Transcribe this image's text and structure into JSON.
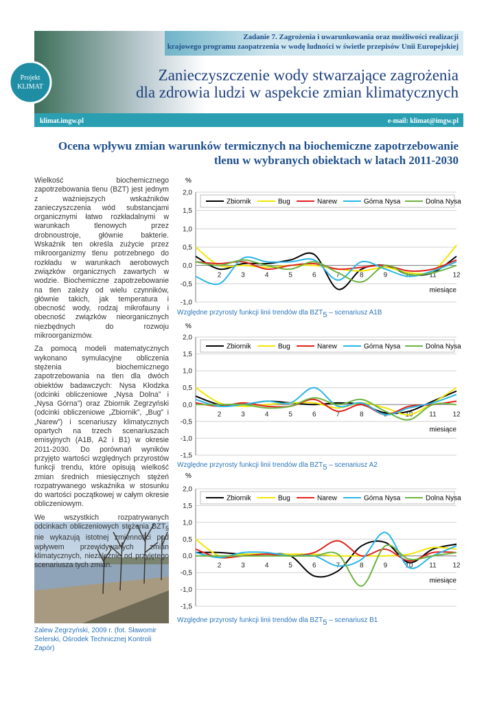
{
  "header": {
    "task": [
      "Zadanie 7. Zagrożenia i uwarunkowania oraz możliwości realizacji",
      "krajowego programu zaopatrzenia w wodę ludności w świetle przepisów Unii Europejskiej"
    ],
    "logo": [
      "Projekt",
      "KLIMAT"
    ],
    "title": [
      "Zanieczyszczenie wody stwarzające zagrożenia",
      "dla zdrowia ludzi w aspekcie zmian klimatycznych"
    ],
    "website": "klimat.imgw.pl",
    "email": "e-mail: klimat@imgw.pl"
  },
  "article": {
    "heading": [
      "Ocena wpływu zmian warunków termicznych na biochemiczne zapotrzebowanie",
      "tlenu w wybranych obiektach w latach 2011-2030"
    ],
    "paragraphs": [
      "Wielkość biochemicznego zapotrzebowania tlenu (BZT) jest jednym z ważniejszych wskaźników zanieczyszczenia wód substancjami organicznymi łatwo rozkładalnymi w warunkach tlenowych przez drobnoustroje, głównie bakterie. Wskaźnik ten określa zużycie przez mikroorganizmy tlenu potrzebnego do rozkładu w warunkach aerobowych związków organicznych zawartych w wodzie. Biochemiczne zapotrzebowanie na tlen zależy od wielu czynników, głównie takich, jak temperatura i obecność wody, rodzaj mikrofauny i obecność związków nieorganicznych niezbędnych do rozwoju mikroorganizmów.",
      "Za pomocą modeli matematycznych wykonano symulacyjne obliczenia stężenia biochemicznego zapotrzebowania na tlen dla dwóch obiektów badawczych: Nysa Kłodzka (odcinki obliczeniowe „Nysa Dolna” i „Nysa Górna”) oraz Zbiornik Zegrzyński (odcinki obliczeniowe „Zbiornik”, „Bug” i „Narew”) i scenariuszy klimatycznych opartych na trzech scenariuszach emisyjnych (A1B, A2 i B1) w okresie 2011-2030. Do porównań wyników przyjęto wartości względnych przyrostów funkcji trendu, które opisują wielkość zmian średnich miesięcznych stężeń rozpatrywanego wskaźnika w stosunku do wartości początkowej w całym okresie obliczeniowym.",
      [
        "We wszystkich rozpatrywanych odcinkach obliczeniowych stężenia BZT",
        "5",
        " nie wykazują istotnej zmienności pod wpływem przewidywanych zmian klimatycznych, niezależnie od przyjętego scenariusza tych zmian."
      ]
    ],
    "photo_caption": "Zalew Zegrzyński, 2009 r. (fot. Sławomir Selerski, Ośrodek Technicznej Kontroli Zapór)"
  },
  "chart_data": [
    {
      "type": "line",
      "caption": [
        "Względne przyrosty funkcji linii trendów dla BZT",
        "5",
        " – scenariusz A1B"
      ],
      "y_label": "%",
      "x_label": "miesiące",
      "grid": true,
      "legend": "top",
      "categories": [
        null,
        "2",
        "3",
        "4",
        "5",
        "6",
        "7",
        "8",
        "9",
        "10",
        "11",
        "12"
      ],
      "ylim": [
        -1,
        2
      ],
      "yticks": [
        {
          "value": -1,
          "label": "-1,0"
        },
        {
          "value": -0.5,
          "label": "-0,5"
        },
        {
          "value": 0,
          "label": "0,0"
        },
        {
          "value": 0.5,
          "label": "0,5"
        },
        {
          "value": 1,
          "label": "1,0"
        },
        {
          "value": 1.5,
          "label": "1,5"
        },
        {
          "value": 2,
          "label": "2,0"
        }
      ],
      "series": [
        {
          "name": "Zbiornik",
          "color": "#000000",
          "values": [
            0.25,
            -0.1,
            0.05,
            0.05,
            0.15,
            0.3,
            -0.65,
            -0.1,
            0,
            -0.25,
            -0.2,
            0.25
          ]
        },
        {
          "name": "Bug",
          "color": "#f2e600",
          "values": [
            0.5,
            0,
            0,
            -0.05,
            0,
            0,
            -0.1,
            -0.15,
            -0.05,
            -0.2,
            -0.15,
            0.55
          ]
        },
        {
          "name": "Narew",
          "color": "#e0201c",
          "values": [
            0.1,
            0.05,
            0.1,
            -0.1,
            0,
            0.05,
            -0.1,
            -0.05,
            0,
            -0.15,
            -0.1,
            0.15
          ]
        },
        {
          "name": "Górna Nysa",
          "color": "#29b6e6",
          "values": [
            -0.3,
            -0.5,
            0.2,
            0.1,
            0.1,
            0.15,
            -0.4,
            0.1,
            -0.1,
            -0.3,
            -0.15,
            0.1
          ]
        },
        {
          "name": "Dolna Nysa",
          "color": "#6cb33f",
          "values": [
            0.1,
            0,
            0.15,
            0,
            -0.1,
            0.1,
            -0.2,
            -0.45,
            0,
            -0.25,
            -0.2,
            0
          ]
        }
      ]
    },
    {
      "type": "line",
      "caption": [
        "Względne przyrosty funkcji linii trendów dla BZT",
        "5",
        " – scenariusz A2"
      ],
      "y_label": "%",
      "x_label": "miesiące",
      "grid": true,
      "legend": "top",
      "categories": [
        null,
        "2",
        "3",
        "4",
        "5",
        "6",
        "7",
        "8",
        "9",
        "10",
        "11",
        "12"
      ],
      "ylim": [
        -1.5,
        2
      ],
      "yticks": [
        {
          "value": -1.5,
          "label": "-1,5"
        },
        {
          "value": -1,
          "label": "-1,0"
        },
        {
          "value": -0.5,
          "label": "-0,5"
        },
        {
          "value": 0,
          "label": "0,0"
        },
        {
          "value": 0.5,
          "label": "0,5"
        },
        {
          "value": 1,
          "label": "1,0"
        },
        {
          "value": 1.5,
          "label": "1,5"
        },
        {
          "value": 2,
          "label": "2,0"
        }
      ],
      "series": [
        {
          "name": "Zbiornik",
          "color": "#000000",
          "values": [
            0.25,
            0,
            0,
            0.1,
            0.05,
            0,
            0.05,
            0,
            -0.25,
            -0.2,
            0.1,
            0.4
          ]
        },
        {
          "name": "Bug",
          "color": "#f2e600",
          "values": [
            0.5,
            0.05,
            -0.05,
            0,
            0.05,
            0.05,
            -0.1,
            0.05,
            -0.1,
            -0.3,
            0.05,
            0.5
          ]
        },
        {
          "name": "Narew",
          "color": "#e0201c",
          "values": [
            0.05,
            -0.05,
            0.05,
            -0.05,
            -0.05,
            0.15,
            -0.2,
            0,
            -0.3,
            -0.05,
            0,
            0.1
          ]
        },
        {
          "name": "Górna Nysa",
          "color": "#29b6e6",
          "values": [
            0.15,
            -0.05,
            0,
            0.1,
            0.05,
            0.5,
            -0.05,
            0.05,
            -0.3,
            -0.1,
            0.05,
            0.3
          ]
        },
        {
          "name": "Dolna Nysa",
          "color": "#6cb33f",
          "values": [
            0,
            0,
            0,
            -0.1,
            -0.05,
            0.2,
            0,
            0.15,
            -0.2,
            -0.45,
            0,
            0
          ]
        }
      ]
    },
    {
      "type": "line",
      "caption": [
        "Względne przyrosty funkcji linii trendów dla BZT",
        "5",
        " – scenariusz B1"
      ],
      "y_label": "%",
      "x_label": "miesiące",
      "grid": true,
      "legend": "top",
      "categories": [
        null,
        "2",
        "3",
        "4",
        "5",
        "6",
        "7",
        "8",
        "9",
        "10",
        "11",
        "12"
      ],
      "ylim": [
        -1.5,
        2
      ],
      "yticks": [
        {
          "value": -1.5,
          "label": "-1,5"
        },
        {
          "value": -1,
          "label": "-1,0"
        },
        {
          "value": -0.5,
          "label": "-0,5"
        },
        {
          "value": 0,
          "label": "0,0"
        },
        {
          "value": 0.5,
          "label": "0,5"
        },
        {
          "value": 1,
          "label": "1,0"
        },
        {
          "value": 1.5,
          "label": "1,5"
        },
        {
          "value": 2,
          "label": "2,0"
        }
      ],
      "series": [
        {
          "name": "Zbiornik",
          "color": "#000000",
          "values": [
            0.1,
            0.1,
            0.05,
            0.05,
            0,
            -0.6,
            -0.45,
            0.3,
            0.4,
            -0.2,
            0.2,
            0.35
          ]
        },
        {
          "name": "Bug",
          "color": "#f2e600",
          "values": [
            0.5,
            0,
            0.05,
            0.05,
            0.05,
            0.05,
            0,
            0,
            0,
            0.05,
            0.25,
            0.2
          ]
        },
        {
          "name": "Narew",
          "color": "#e0201c",
          "values": [
            0.2,
            -0.05,
            0,
            0.05,
            0,
            0.1,
            0.45,
            0,
            0.2,
            -0.15,
            0.1,
            0.1
          ]
        },
        {
          "name": "Górna Nysa",
          "color": "#29b6e6",
          "values": [
            0.1,
            -0.05,
            0.1,
            0.1,
            0,
            0,
            -0.3,
            -0.1,
            0.7,
            -0.35,
            0,
            0.3
          ]
        },
        {
          "name": "Dolna Nysa",
          "color": "#6cb33f",
          "values": [
            0,
            0,
            0,
            0,
            0,
            0,
            0.05,
            -0.9,
            0.3,
            -0.1,
            0,
            0.1
          ]
        }
      ]
    }
  ]
}
